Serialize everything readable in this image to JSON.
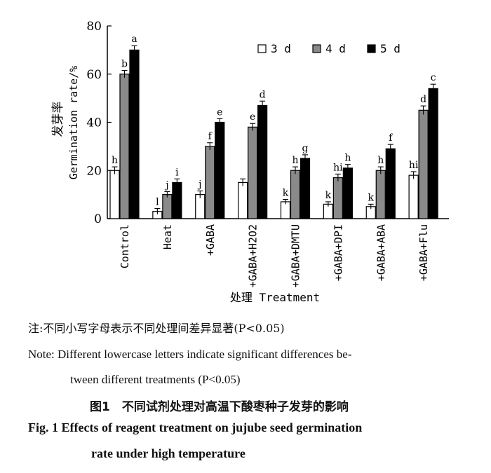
{
  "chart_data": {
    "type": "bar",
    "categories": [
      "Control",
      "Heat",
      "+GABA",
      "+GABA+H2O2",
      "+GABA+DMTU",
      "+GABA+DPI",
      "+GABA+ABA",
      "+GABA+Flu"
    ],
    "series": [
      {
        "name": "3 d",
        "values": [
          20,
          3,
          10,
          15,
          7,
          6,
          5,
          18
        ],
        "errors": [
          1.5,
          1.2,
          1.5,
          1.5,
          1.0,
          1.0,
          1.0,
          1.5
        ],
        "labels": [
          "h",
          "l",
          "j",
          "",
          "k",
          "k",
          "k",
          "hi"
        ]
      },
      {
        "name": "4 d",
        "values": [
          60,
          10,
          30,
          38,
          20,
          17,
          20,
          45
        ],
        "errors": [
          1.5,
          1.2,
          1.5,
          1.5,
          1.5,
          1.5,
          1.5,
          1.8
        ],
        "labels": [
          "b",
          "j",
          "f",
          "e",
          "h",
          "hi",
          "h",
          "d"
        ]
      },
      {
        "name": "5 d",
        "values": [
          70,
          15,
          40,
          47,
          25,
          21,
          29,
          54
        ],
        "errors": [
          1.8,
          1.5,
          1.5,
          1.8,
          1.5,
          1.5,
          1.8,
          1.8
        ],
        "labels": [
          "a",
          "i",
          "e",
          "d",
          "g",
          "h",
          "f",
          "c"
        ]
      }
    ],
    "ylabel_cn": "发芽率",
    "ylabel_en": "Germination rate",
    "ylabel_unit": "/%",
    "xlabel": "处理 Treatment",
    "ylim": [
      0,
      80
    ],
    "yticks": [
      0,
      20,
      40,
      60,
      80
    ],
    "legend_position": "top-right",
    "colors": {
      "3 d": "#ffffff",
      "4 d": "#8a8a8a",
      "5 d": "#000000"
    }
  },
  "notes": {
    "cn": "注:不同小写字母表示不同处理间差异显著(P<0.05)",
    "en_line1": "Note: Different lowercase letters indicate significant differences be-",
    "en_line2": "tween different treatments (P<0.05)"
  },
  "caption": {
    "cn": "图1　不同试剂处理对高温下酸枣种子发芽的影响",
    "en_line1": "Fig. 1    Effects of reagent treatment on jujube seed germination",
    "en_line2": "rate under high temperature"
  }
}
